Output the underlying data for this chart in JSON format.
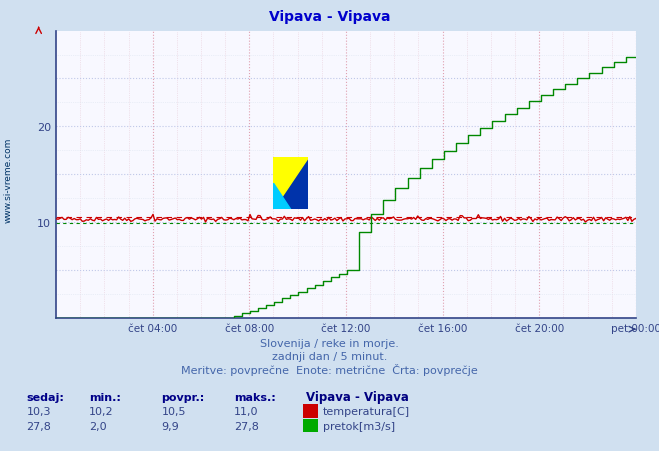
{
  "title": "Vipava - Vipava",
  "title_color": "#0000cc",
  "bg_color": "#d0e0f0",
  "plot_bg_color": "#f8f8ff",
  "xlabel_color": "#334488",
  "ylim": [
    0,
    30
  ],
  "yticks": [
    10,
    20
  ],
  "xtick_labels": [
    "čet 04:00",
    "čet 08:00",
    "čet 12:00",
    "čet 16:00",
    "čet 20:00",
    "pet 00:00"
  ],
  "footer_line1": "Slovenija / reke in morje.",
  "footer_line2": "zadnji dan / 5 minut.",
  "footer_line3": "Meritve: povprečne  Enote: metrične  Črta: povprečje",
  "footer_color": "#4466aa",
  "legend_title": "Vipava - Vipava",
  "legend_title_color": "#000080",
  "sidebar_text": "www.si-vreme.com",
  "sidebar_color": "#003366",
  "temp_color": "#cc0000",
  "flow_color": "#008800",
  "avg_temp_color": "#cc0000",
  "avg_flow_color": "#008800",
  "stats": {
    "sedaj_temp": "10,3",
    "min_temp": "10,2",
    "povpr_temp": "10,5",
    "maks_temp": "11,0",
    "sedaj_flow": "27,8",
    "min_flow": "2,0",
    "povpr_flow": "9,9",
    "maks_flow": "27,8"
  }
}
